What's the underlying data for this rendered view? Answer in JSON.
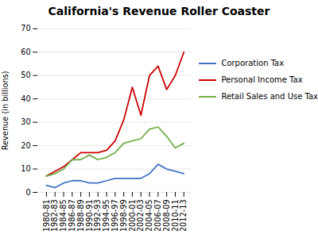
{
  "chart_data": {
    "type": "line",
    "title": "California's Revenue Roller Coaster",
    "ylabel": "Revenue (in billions)",
    "categories": [
      "1980-81",
      "1982-83",
      "1984-85",
      "1986-87",
      "1988-89",
      "1990-91",
      "1992-93",
      "1994-95",
      "1996-97",
      "1998-99",
      "2000-01",
      "2002-03",
      "2004-05",
      "2006-07",
      "2008-09",
      "2010-11",
      "2012-13"
    ],
    "series": [
      {
        "name": "Corporation Tax",
        "color": "#4472C4",
        "values": [
          3,
          2,
          4,
          5,
          5,
          4,
          4,
          5,
          6,
          6,
          6,
          6,
          8,
          12,
          10,
          9,
          8
        ]
      },
      {
        "name": "Personal Income Tax",
        "color": "#CC0000",
        "values": [
          7,
          9,
          11,
          14,
          17,
          17,
          17,
          18,
          22,
          31,
          45,
          33,
          50,
          54,
          44,
          50,
          60
        ]
      },
      {
        "name": "Retail Sales and Use Tax",
        "color": "#70AD47",
        "values": [
          7,
          8,
          10,
          14,
          14,
          16,
          14,
          15,
          17,
          21,
          22,
          23,
          27,
          28,
          24,
          19,
          21
        ]
      }
    ],
    "ylim": [
      0,
      70
    ],
    "yticks": [
      0,
      10,
      20,
      30,
      40,
      50,
      60,
      70
    ],
    "grid": true,
    "legend": "right"
  }
}
